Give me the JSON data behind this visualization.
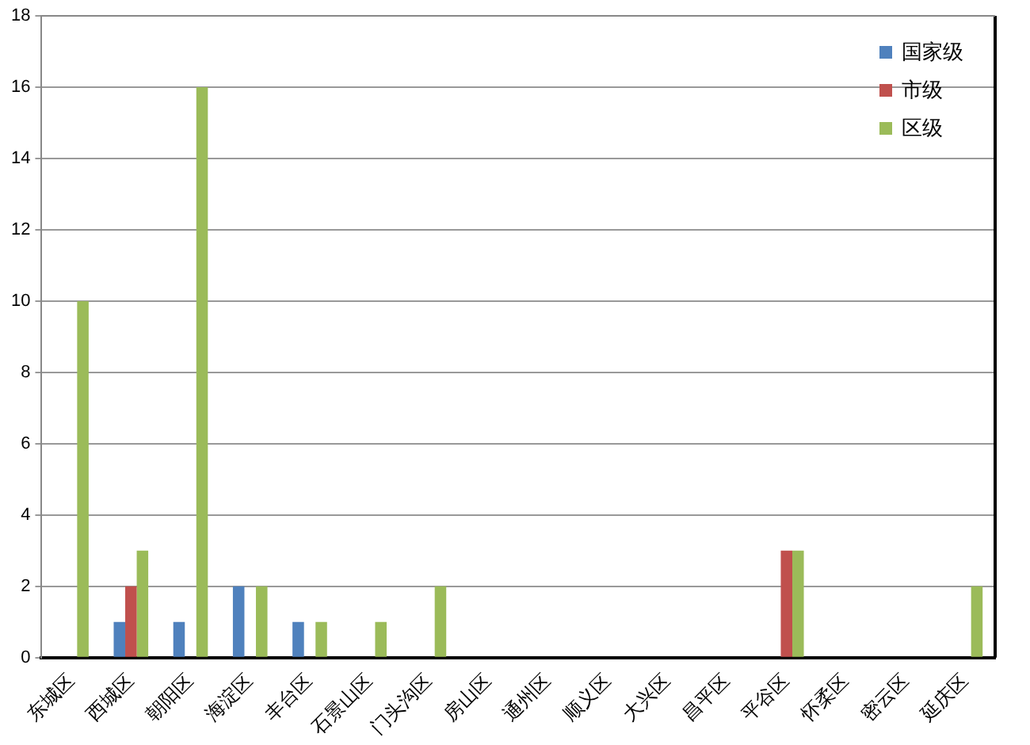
{
  "chart_data": {
    "type": "bar",
    "categories": [
      "东城区",
      "西城区",
      "朝阳区",
      "海淀区",
      "丰台区",
      "石景山区",
      "门头沟区",
      "房山区",
      "通州区",
      "顺义区",
      "大兴区",
      "昌平区",
      "平谷区",
      "怀柔区",
      "密云区",
      "延庆区"
    ],
    "series": [
      {
        "name": "国家级",
        "color": "#4f81bd",
        "values": [
          0,
          1,
          1,
          2,
          1,
          0,
          0,
          0,
          0,
          0,
          0,
          0,
          0,
          0,
          0,
          0
        ]
      },
      {
        "name": "市级",
        "color": "#c0504d",
        "values": [
          0,
          2,
          0,
          0,
          0,
          0,
          0,
          0,
          0,
          0,
          0,
          0,
          3,
          0,
          0,
          0
        ]
      },
      {
        "name": "区级",
        "color": "#9bbb59",
        "values": [
          10,
          3,
          16,
          2,
          1,
          1,
          2,
          0,
          0,
          0,
          0,
          0,
          3,
          0,
          0,
          2
        ]
      }
    ],
    "ylim": [
      0,
      18
    ],
    "yticks": [
      0,
      2,
      4,
      6,
      8,
      10,
      12,
      14,
      16,
      18
    ],
    "grid": "y",
    "legend": "top right"
  }
}
